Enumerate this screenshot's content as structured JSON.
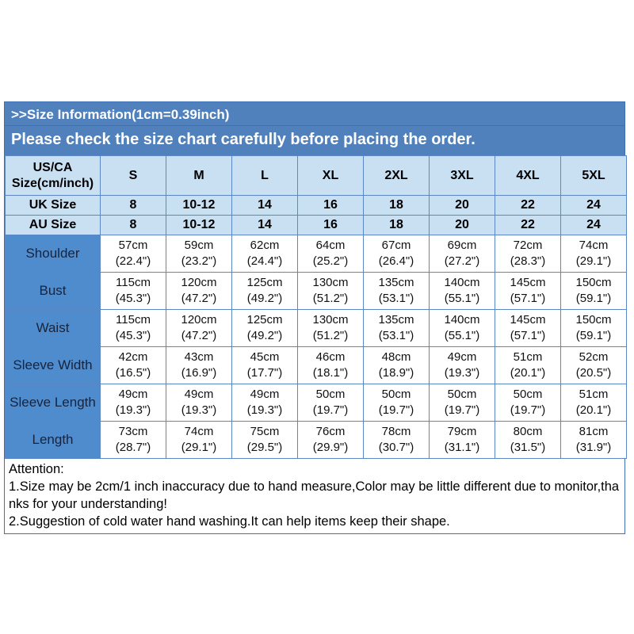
{
  "banner": {
    "line1": ">>Size Information(1cm=0.39inch)",
    "line2": "Please check the size chart carefully before placing the order."
  },
  "colors": {
    "banner_bg": "#5081bd",
    "header_bg": "#c9dff2",
    "label_bg": "#4e8cce",
    "grid_border": "#5b87c4",
    "outer_border": "#3f70b3",
    "label_text": "#16243f",
    "banner_text": "#ffffff"
  },
  "size_chart": {
    "corner": {
      "line1": "US/CA",
      "line2": "Size(cm/inch)"
    },
    "size_labels": [
      "S",
      "M",
      "L",
      "XL",
      "2XL",
      "3XL",
      "4XL",
      "5XL"
    ],
    "region_rows": [
      {
        "label": "UK Size",
        "values": [
          "8",
          "10-12",
          "14",
          "16",
          "18",
          "20",
          "22",
          "24"
        ]
      },
      {
        "label": "AU Size",
        "values": [
          "8",
          "10-12",
          "14",
          "16",
          "18",
          "20",
          "22",
          "24"
        ]
      }
    ],
    "measurement_rows": [
      {
        "label": "Shoulder",
        "cm": [
          "57cm",
          "59cm",
          "62cm",
          "64cm",
          "67cm",
          "69cm",
          "72cm",
          "74cm"
        ],
        "inch": [
          "(22.4\")",
          "(23.2\")",
          "(24.4\")",
          "(25.2\")",
          "(26.4\")",
          "(27.2\")",
          "(28.3\")",
          "(29.1\")"
        ]
      },
      {
        "label": "Bust",
        "cm": [
          "115cm",
          "120cm",
          "125cm",
          "130cm",
          "135cm",
          "140cm",
          "145cm",
          "150cm"
        ],
        "inch": [
          "(45.3\")",
          "(47.2\")",
          "(49.2\")",
          "(51.2\")",
          "(53.1\")",
          "(55.1\")",
          "(57.1\")",
          "(59.1\")"
        ]
      },
      {
        "label": "Waist",
        "cm": [
          "115cm",
          "120cm",
          "125cm",
          "130cm",
          "135cm",
          "140cm",
          "145cm",
          "150cm"
        ],
        "inch": [
          "(45.3\")",
          "(47.2\")",
          "(49.2\")",
          "(51.2\")",
          "(53.1\")",
          "(55.1\")",
          "(57.1\")",
          "(59.1\")"
        ]
      },
      {
        "label": "Sleeve Width",
        "cm": [
          "42cm",
          "43cm",
          "45cm",
          "46cm",
          "48cm",
          "49cm",
          "51cm",
          "52cm"
        ],
        "inch": [
          "(16.5\")",
          "(16.9\")",
          "(17.7\")",
          "(18.1\")",
          "(18.9\")",
          "(19.3\")",
          "(20.1\")",
          "(20.5\")"
        ]
      },
      {
        "label": "Sleeve Length",
        "cm": [
          "49cm",
          "49cm",
          "49cm",
          "50cm",
          "50cm",
          "50cm",
          "50cm",
          "51cm"
        ],
        "inch": [
          "(19.3\")",
          "(19.3\")",
          "(19.3\")",
          "(19.7\")",
          "(19.7\")",
          "(19.7\")",
          "(19.7\")",
          "(20.1\")"
        ]
      },
      {
        "label": "Length",
        "cm": [
          "73cm",
          "74cm",
          "75cm",
          "76cm",
          "78cm",
          "79cm",
          "80cm",
          "81cm"
        ],
        "inch": [
          "(28.7\")",
          "(29.1\")",
          "(29.5\")",
          "(29.9\")",
          "(30.7\")",
          "(31.1\")",
          "(31.5\")",
          "(31.9\")"
        ]
      }
    ]
  },
  "attention": {
    "title": "Attention:",
    "items": [
      "1.Size may be 2cm/1 inch inaccuracy due to hand measure,Color may be little different due to monitor,thanks for your understanding!",
      "2.Suggestion of cold water hand washing.It can help items keep their shape."
    ]
  }
}
